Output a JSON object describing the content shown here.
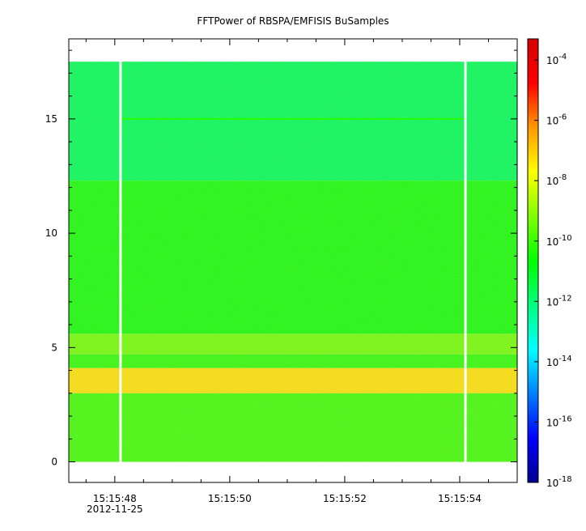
{
  "chart_data": {
    "type": "heatmap",
    "title": "FFTPower of RBSPA/EMFISIS  BuSamples",
    "xlabel": "",
    "ylabel": "",
    "x_start": "15:15:47.2",
    "x_end": "15:15:55.0",
    "x_ticks": [
      {
        "t": 48,
        "label": "15:15:48",
        "sublabel": "2012-11-25"
      },
      {
        "t": 50,
        "label": "15:15:50",
        "sublabel": ""
      },
      {
        "t": 52,
        "label": "15:15:52",
        "sublabel": ""
      },
      {
        "t": 54,
        "label": "15:15:54",
        "sublabel": ""
      }
    ],
    "x_minor_ticks": [
      47.5,
      48.5,
      49,
      49.5,
      50.5,
      51,
      51.5,
      52.5,
      53,
      53.5,
      54.5
    ],
    "ylim": [
      -0.9,
      18.5
    ],
    "y_ticks": [
      {
        "v": 0,
        "label": "0"
      },
      {
        "v": 5,
        "label": "5"
      },
      {
        "v": 10,
        "label": "10"
      },
      {
        "v": 15,
        "label": "15"
      }
    ],
    "y_minor_ticks": [
      1,
      2,
      3,
      4,
      6,
      7,
      8,
      9,
      11,
      12,
      13,
      14,
      16,
      17,
      18
    ],
    "data_y_range": [
      0.0,
      17.5
    ],
    "gaps_seconds": [
      48.1,
      54.1
    ],
    "colorbar": {
      "scale": "log",
      "range": [
        -18,
        -3.3
      ],
      "ticks": [
        {
          "exp": -4,
          "base": "10",
          "sup": "-4"
        },
        {
          "exp": -6,
          "base": "10",
          "sup": "-6"
        },
        {
          "exp": -8,
          "base": "10",
          "sup": "-8"
        },
        {
          "exp": -10,
          "base": "10",
          "sup": "-10"
        },
        {
          "exp": -12,
          "base": "10",
          "sup": "-12"
        },
        {
          "exp": -14,
          "base": "10",
          "sup": "-14"
        },
        {
          "exp": -16,
          "base": "10",
          "sup": "-16"
        },
        {
          "exp": -18,
          "base": "10",
          "sup": "-18"
        }
      ],
      "colors": [
        "#00008f",
        "#0000ff",
        "#007fff",
        "#00ffff",
        "#00ff7f",
        "#00ff00",
        "#7fff00",
        "#ffff00",
        "#ff9900",
        "#ff0000",
        "#d40000"
      ]
    },
    "bands": [
      {
        "y_from": 12.3,
        "y_to": 17.5,
        "log_power": -11.6
      },
      {
        "y_from": 5.6,
        "y_to": 12.3,
        "log_power": -10.4
      },
      {
        "y_from": 4.7,
        "y_to": 5.6,
        "log_power": -9.3
      },
      {
        "y_from": 4.1,
        "y_to": 4.7,
        "log_power": -10.1
      },
      {
        "y_from": 3.0,
        "y_to": 4.1,
        "log_power": -7.3
      },
      {
        "y_from": 0.0,
        "y_to": 3.0,
        "log_power": -9.9
      }
    ],
    "line_features": [
      {
        "y": 15.0,
        "log_power": -10.2,
        "t_from": 48.1,
        "t_to": 54.1
      }
    ]
  }
}
